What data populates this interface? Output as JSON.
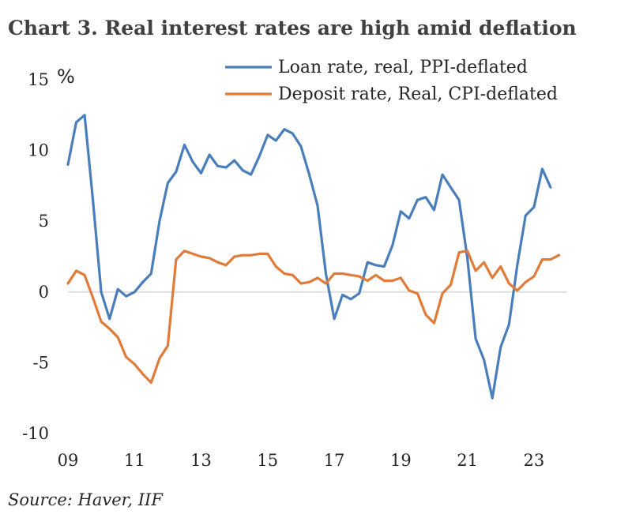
{
  "chart_data": {
    "type": "line",
    "title": "Chart 3. Real interest rates are high amid deflation",
    "unit_label": "%",
    "source": "Source: Haver, IIF",
    "xlabel": "",
    "ylabel": "%",
    "xlim": [
      2009.0,
      2024.0
    ],
    "ylim": [
      -10,
      15
    ],
    "y_ticks": [
      15,
      10,
      5,
      0,
      -5,
      -10
    ],
    "x_ticks": [
      {
        "value": 2009,
        "label": "09"
      },
      {
        "value": 2011,
        "label": "11"
      },
      {
        "value": 2013,
        "label": "13"
      },
      {
        "value": 2015,
        "label": "15"
      },
      {
        "value": 2017,
        "label": "17"
      },
      {
        "value": 2019,
        "label": "19"
      },
      {
        "value": 2021,
        "label": "21"
      },
      {
        "value": 2023,
        "label": "23"
      }
    ],
    "grid": false,
    "legend_position": "top-right",
    "series": [
      {
        "name": "Loan rate, real, PPI-deflated",
        "color": "#4a7ebb",
        "x": [
          2009.0,
          2009.25,
          2009.5,
          2009.75,
          2010.0,
          2010.25,
          2010.5,
          2010.75,
          2011.0,
          2011.25,
          2011.5,
          2011.75,
          2012.0,
          2012.25,
          2012.5,
          2012.75,
          2013.0,
          2013.25,
          2013.5,
          2013.75,
          2014.0,
          2014.25,
          2014.5,
          2014.75,
          2015.0,
          2015.25,
          2015.5,
          2015.75,
          2016.0,
          2016.25,
          2016.5,
          2016.75,
          2017.0,
          2017.25,
          2017.5,
          2017.75,
          2018.0,
          2018.25,
          2018.5,
          2018.75,
          2019.0,
          2019.25,
          2019.5,
          2019.75,
          2020.0,
          2020.25,
          2020.5,
          2020.75,
          2021.0,
          2021.25,
          2021.5,
          2021.75,
          2022.0,
          2022.25,
          2022.5,
          2022.75,
          2023.0,
          2023.25,
          2023.5
        ],
        "values": [
          9.0,
          12.0,
          12.5,
          6.5,
          0.0,
          -1.9,
          0.2,
          -0.3,
          0.0,
          0.7,
          1.3,
          5.0,
          7.7,
          8.5,
          10.4,
          9.2,
          8.4,
          9.7,
          8.9,
          8.8,
          9.3,
          8.6,
          8.3,
          9.6,
          11.1,
          10.7,
          11.5,
          11.2,
          10.3,
          8.3,
          6.1,
          1.3,
          -1.9,
          -0.2,
          -0.5,
          -0.1,
          2.1,
          1.9,
          1.8,
          3.3,
          5.7,
          5.2,
          6.5,
          6.7,
          5.8,
          8.3,
          7.4,
          6.5,
          2.4,
          -3.3,
          -4.8,
          -7.5,
          -3.9,
          -2.3,
          1.9,
          5.4,
          6.0,
          8.7,
          7.4
        ]
      },
      {
        "name": "Deposit rate, Real, CPI-deflated",
        "color": "#e07b39",
        "x": [
          2009.0,
          2009.25,
          2009.5,
          2009.75,
          2010.0,
          2010.25,
          2010.5,
          2010.75,
          2011.0,
          2011.25,
          2011.5,
          2011.75,
          2012.0,
          2012.25,
          2012.5,
          2012.75,
          2013.0,
          2013.25,
          2013.5,
          2013.75,
          2014.0,
          2014.25,
          2014.5,
          2014.75,
          2015.0,
          2015.25,
          2015.5,
          2015.75,
          2016.0,
          2016.25,
          2016.5,
          2016.75,
          2017.0,
          2017.25,
          2017.5,
          2017.75,
          2018.0,
          2018.25,
          2018.5,
          2018.75,
          2019.0,
          2019.25,
          2019.5,
          2019.75,
          2020.0,
          2020.25,
          2020.5,
          2020.75,
          2021.0,
          2021.25,
          2021.5,
          2021.75,
          2022.0,
          2022.25,
          2022.5,
          2022.75,
          2023.0,
          2023.25,
          2023.5,
          2023.75
        ],
        "values": [
          0.6,
          1.5,
          1.2,
          -0.4,
          -2.1,
          -2.6,
          -3.2,
          -4.6,
          -5.1,
          -5.8,
          -6.4,
          -4.7,
          -3.8,
          2.3,
          2.9,
          2.7,
          2.5,
          2.4,
          2.1,
          1.9,
          2.5,
          2.6,
          2.6,
          2.7,
          2.7,
          1.8,
          1.3,
          1.2,
          0.6,
          0.7,
          1.0,
          0.6,
          1.3,
          1.3,
          1.2,
          1.1,
          0.8,
          1.2,
          0.8,
          0.8,
          1.0,
          0.1,
          -0.1,
          -1.6,
          -2.2,
          -0.1,
          0.5,
          2.8,
          2.9,
          1.5,
          2.1,
          1.0,
          1.8,
          0.6,
          0.1,
          0.7,
          1.1,
          2.3,
          2.3,
          2.6
        ]
      }
    ]
  }
}
